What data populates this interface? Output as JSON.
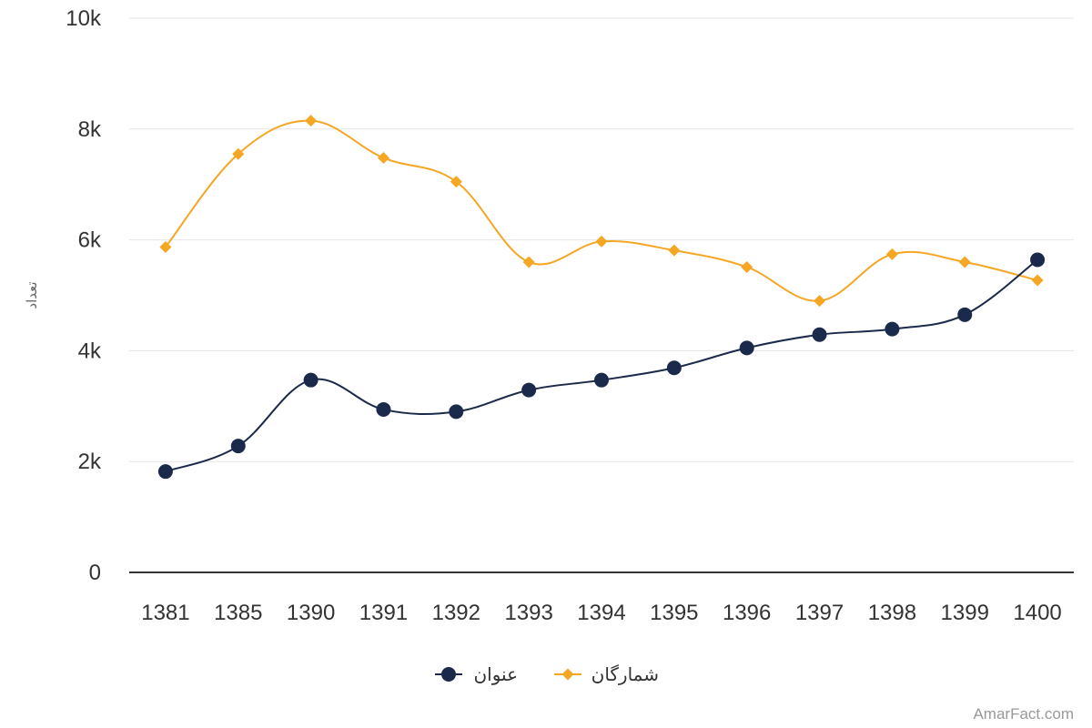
{
  "chart_data": {
    "type": "line",
    "categories": [
      "1381",
      "1385",
      "1390",
      "1391",
      "1392",
      "1393",
      "1394",
      "1395",
      "1396",
      "1397",
      "1398",
      "1399",
      "1400"
    ],
    "series": [
      {
        "name": "شمارگان",
        "color": "#f5a623",
        "marker": "diamond",
        "values": [
          5870,
          7550,
          8150,
          7480,
          7050,
          5600,
          5970,
          5810,
          5510,
          4900,
          5740,
          5600,
          5270
        ]
      },
      {
        "name": "عنوان",
        "color": "#1b2a4a",
        "marker": "circle",
        "values": [
          1820,
          2280,
          3470,
          2940,
          2900,
          3290,
          3470,
          3690,
          4050,
          4290,
          4390,
          4650,
          5640
        ]
      }
    ],
    "ylabel": "تعداد",
    "ylim": [
      0,
      10000
    ],
    "yticks": [
      0,
      2000,
      4000,
      6000,
      8000,
      10000
    ],
    "ytick_labels": [
      "0",
      "2k",
      "4k",
      "6k",
      "8k",
      "10k"
    ],
    "grid": true,
    "legend": "bottom-center",
    "credit": "AmarFact.com"
  }
}
